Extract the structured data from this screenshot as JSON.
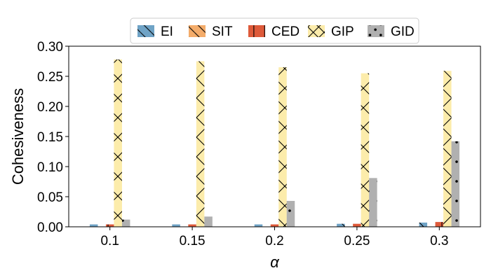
{
  "chart_data": {
    "type": "bar",
    "title": "",
    "xlabel": "α",
    "ylabel": "Cohesiveness",
    "ylim": [
      0,
      0.3
    ],
    "yticks": [
      "0.00",
      "0.05",
      "0.10",
      "0.15",
      "0.20",
      "0.25",
      "0.30"
    ],
    "categories": [
      "0.1",
      "0.15",
      "0.2",
      "0.25",
      "0.3"
    ],
    "grid": false,
    "legend_position": "top-center",
    "series": [
      {
        "name": "EI",
        "color": "#6fa3c6",
        "hatch": "backslash",
        "values": [
          0.004,
          0.004,
          0.004,
          0.005,
          0.007
        ]
      },
      {
        "name": "SIT",
        "color": "#f4ac6a",
        "hatch": "backslash",
        "values": [
          0.0,
          0.0,
          0.0,
          0.0,
          0.0
        ]
      },
      {
        "name": "CED",
        "color": "#de5a3a",
        "hatch": "vertical",
        "values": [
          0.004,
          0.004,
          0.004,
          0.005,
          0.008
        ]
      },
      {
        "name": "GIP",
        "color": "#fcecab",
        "hatch": "cross",
        "values": [
          0.278,
          0.275,
          0.265,
          0.255,
          0.259
        ]
      },
      {
        "name": "GID",
        "color": "#b0b0b0",
        "hatch": "dots",
        "values": [
          0.012,
          0.017,
          0.043,
          0.081,
          0.142
        ]
      }
    ]
  }
}
